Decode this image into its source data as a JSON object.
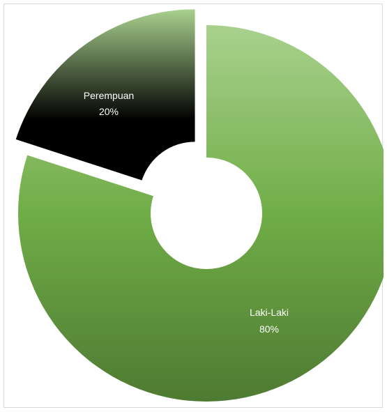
{
  "chart_data": {
    "type": "pie",
    "subtype": "doughnut",
    "title": "",
    "slices": [
      {
        "label": "Laki-Laki",
        "value": 80,
        "percent_label": "80%"
      },
      {
        "label": "Perempuan",
        "value": 20,
        "percent_label": "20%"
      }
    ],
    "exploded": [
      "Perempuan"
    ],
    "legend": "none",
    "colors": {
      "Laki-Laki": {
        "light": "#a9d18e",
        "mid": "#70ad47",
        "dark": "#4e7a32",
        "label_text": "#ffffff"
      },
      "Perempuan": {
        "light": "#a9d18e",
        "dark": "#000000",
        "label_text": "#ffffff"
      }
    }
  }
}
